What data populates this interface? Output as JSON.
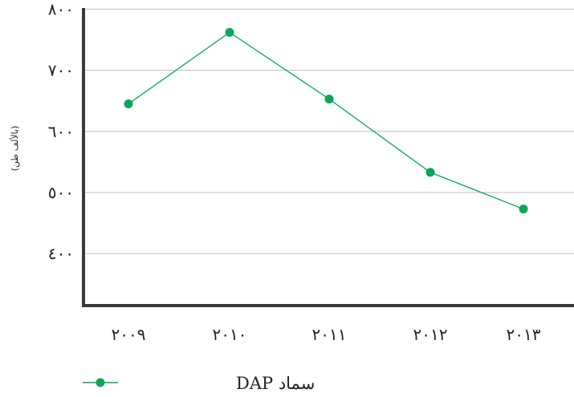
{
  "chart_data": {
    "type": "line",
    "title": "",
    "xlabel": "",
    "ylabel": "(بالألف طن)",
    "categories": [
      "٢٠٠٩",
      "٢٠١٠",
      "٢٠١١",
      "٢٠١٢",
      "٢٠١٣"
    ],
    "y_tick_labels": [
      "٨٠٠",
      "٧٠٠",
      "٦٠٠",
      "٥٠٠",
      "٤٠٠"
    ],
    "y_tick_values": [
      800,
      700,
      600,
      500,
      400
    ],
    "ylim": [
      315,
      815
    ],
    "grid": true,
    "legend_position": "bottom-left",
    "series": [
      {
        "name": "سماد DAP",
        "values": [
          645,
          762,
          653,
          533,
          473
        ],
        "color": "#0aa65a"
      }
    ]
  }
}
